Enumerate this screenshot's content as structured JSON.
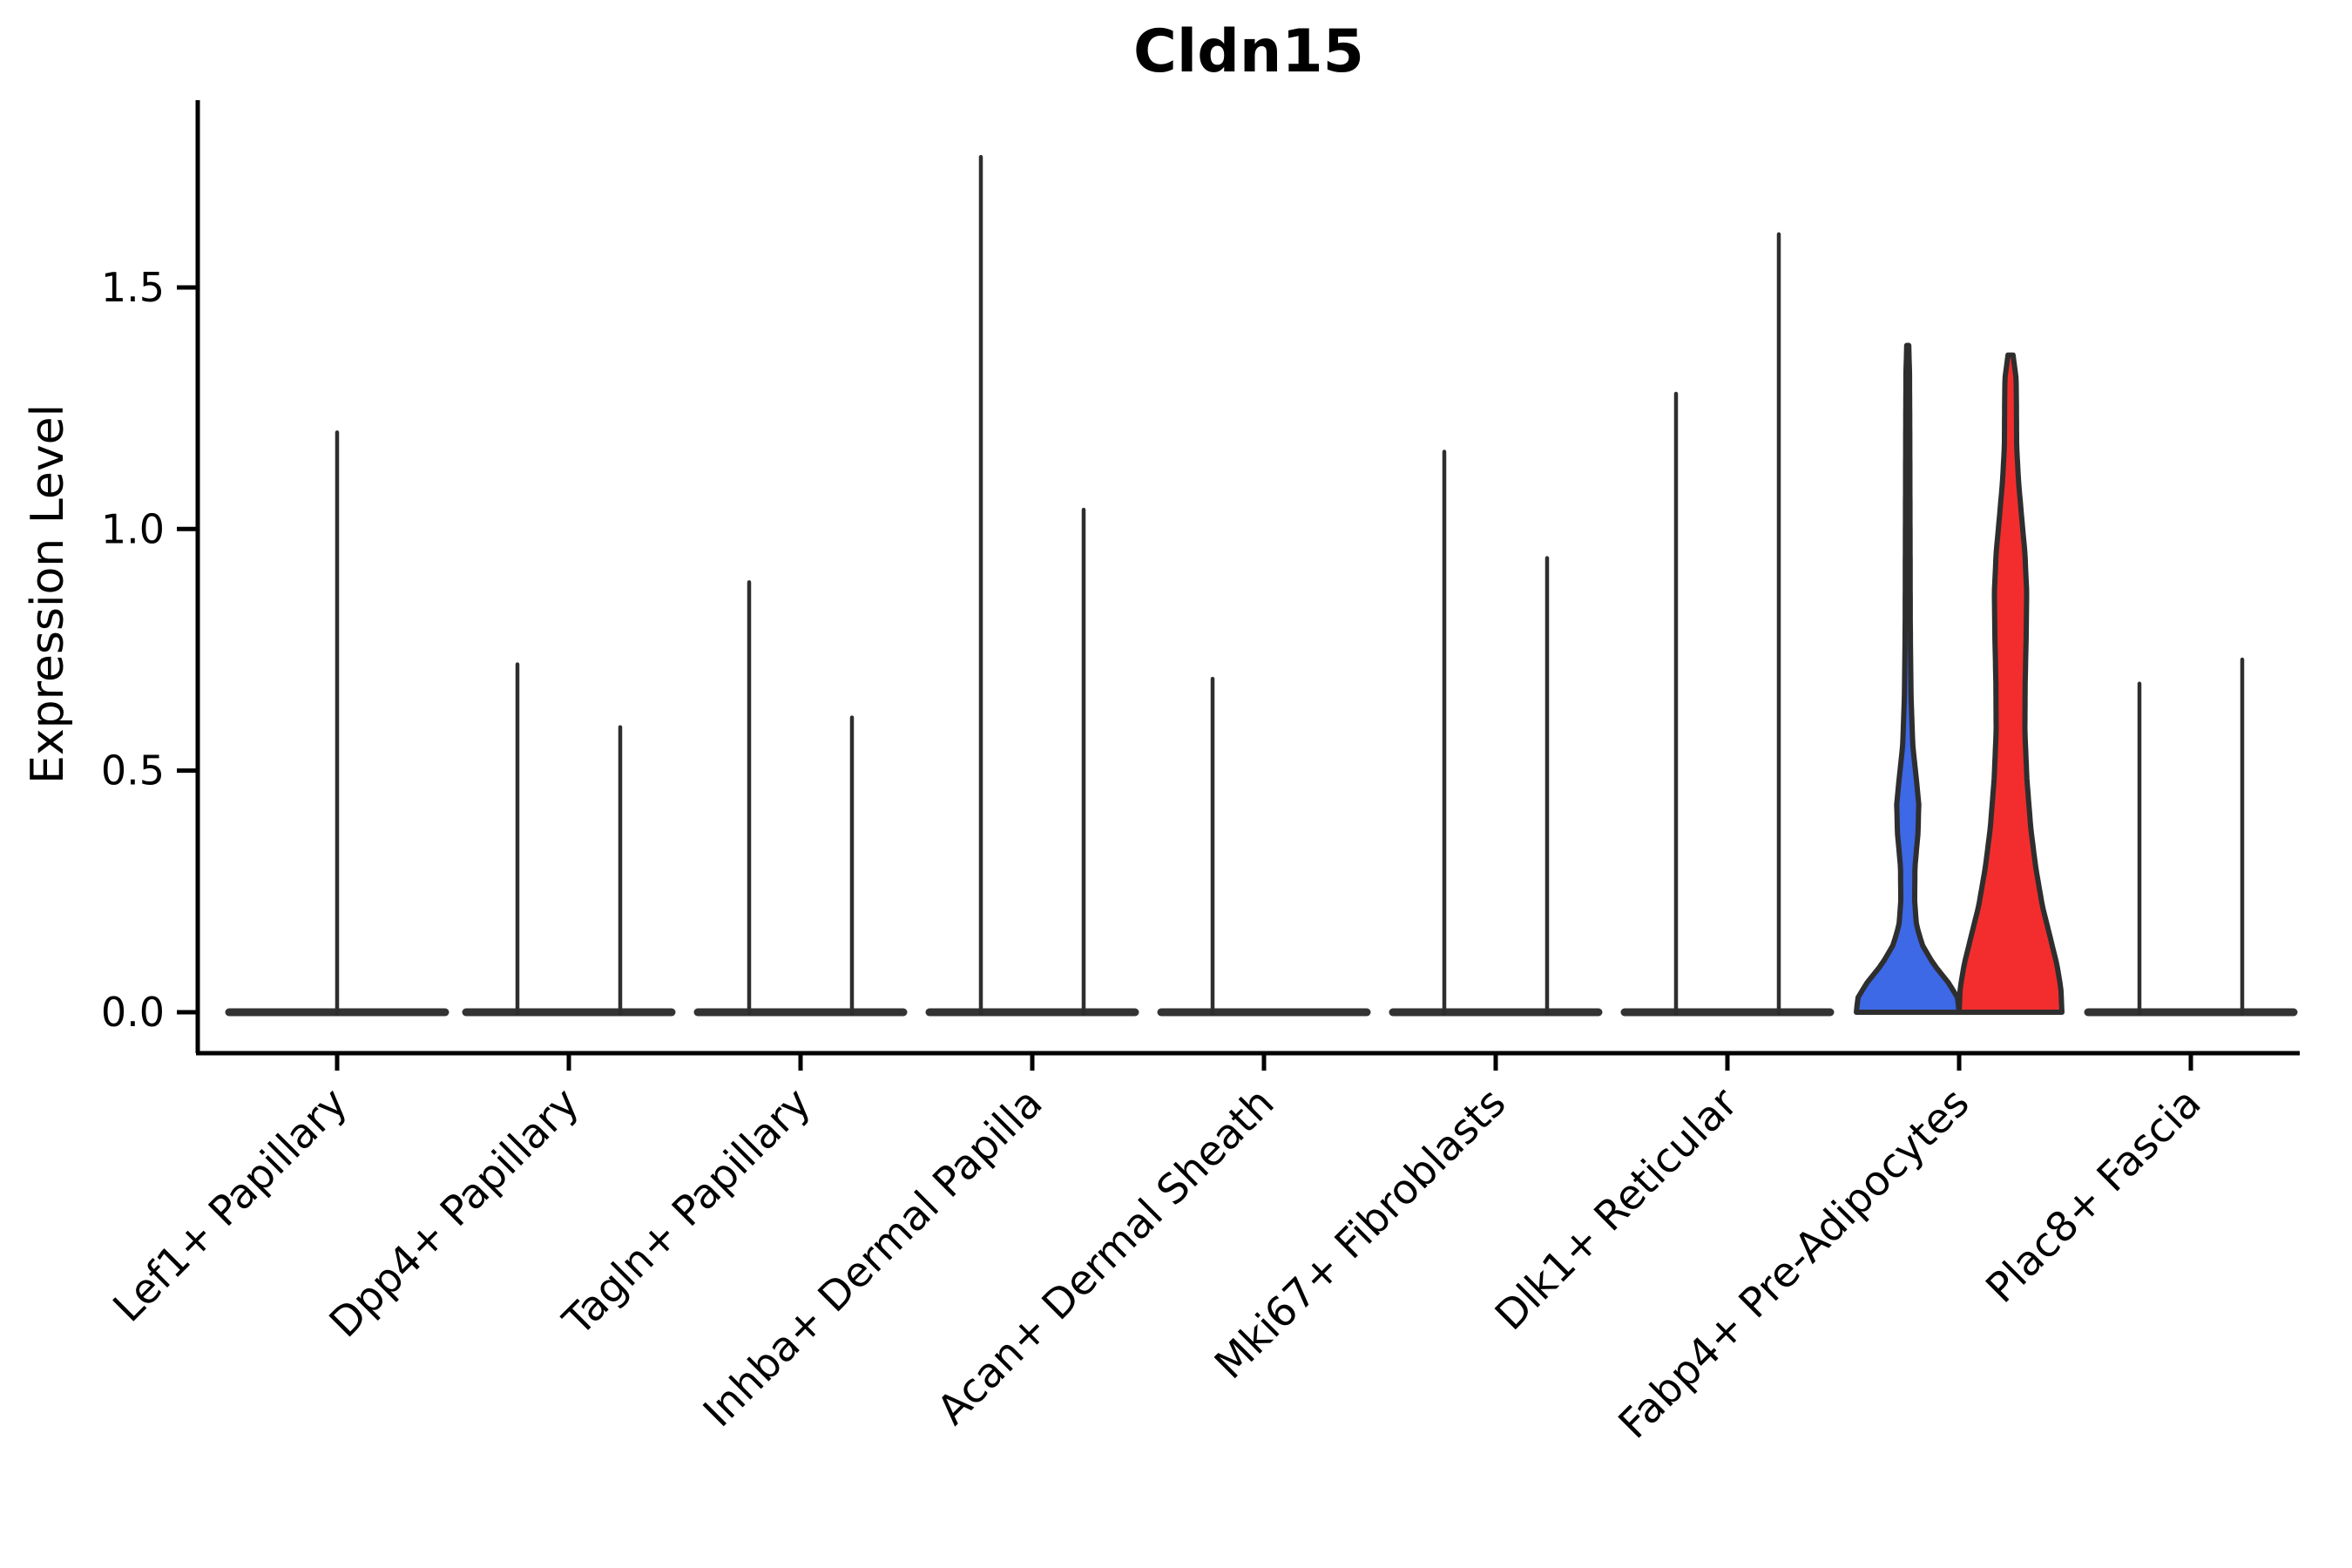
{
  "colors": {
    "axis": "#000000",
    "violin_outline": "#2E2E2E",
    "baseline": "#333333",
    "blue_fill": "#3D68E6",
    "red_fill": "#F32D2D",
    "text": "#000000"
  },
  "chart_data": {
    "type": "violin",
    "title": "Cldn15",
    "xlabel": "",
    "ylabel": "Expression Level",
    "grid": false,
    "legend": false,
    "ylim": [
      -0.07,
      1.95
    ],
    "yticks": [
      "0.0",
      "0.5",
      "1.0",
      "1.5"
    ],
    "ytick_values": [
      0.0,
      0.5,
      1.0,
      1.5
    ],
    "categories": [
      "Lef1+ Papillary",
      "Dpp4+ Papillary",
      "Tagln+ Papillary",
      "Inhba+ Dermal Papilla",
      "Acan+ Dermal Sheath",
      "Mki67+ Fibroblasts",
      "Dlk1+ Reticular",
      "Fabp4+ Pre-Adipocytes",
      "Plac8+ Fascia"
    ],
    "violins": [
      {
        "category": "Lef1+ Papillary",
        "slot": "full",
        "max_expression": 1.2,
        "fill": "none"
      },
      {
        "category": "Dpp4+ Papillary",
        "slot": "left",
        "max_expression": 0.72,
        "fill": "none"
      },
      {
        "category": "Dpp4+ Papillary",
        "slot": "right",
        "max_expression": 0.59,
        "fill": "none"
      },
      {
        "category": "Tagln+ Papillary",
        "slot": "left",
        "max_expression": 0.89,
        "fill": "none"
      },
      {
        "category": "Tagln+ Papillary",
        "slot": "right",
        "max_expression": 0.61,
        "fill": "none"
      },
      {
        "category": "Inhba+ Dermal Papilla",
        "slot": "left",
        "max_expression": 1.77,
        "fill": "none"
      },
      {
        "category": "Inhba+ Dermal Papilla",
        "slot": "right",
        "max_expression": 1.04,
        "fill": "none"
      },
      {
        "category": "Acan+ Dermal Sheath",
        "slot": "left",
        "max_expression": 0.69,
        "fill": "none"
      },
      {
        "category": "Acan+ Dermal Sheath",
        "slot": "right",
        "max_expression": 0.0,
        "fill": "none"
      },
      {
        "category": "Mki67+ Fibroblasts",
        "slot": "left",
        "max_expression": 1.16,
        "fill": "none"
      },
      {
        "category": "Mki67+ Fibroblasts",
        "slot": "right",
        "max_expression": 0.94,
        "fill": "none"
      },
      {
        "category": "Dlk1+ Reticular",
        "slot": "left",
        "max_expression": 1.28,
        "fill": "none"
      },
      {
        "category": "Dlk1+ Reticular",
        "slot": "right",
        "max_expression": 1.61,
        "fill": "none"
      },
      {
        "category": "Fabp4+ Pre-Adipocytes",
        "slot": "left",
        "max_expression": 1.38,
        "fill": "#3D68E6",
        "profile": [
          [
            0.0,
            1.0
          ],
          [
            0.03,
            0.97
          ],
          [
            0.06,
            0.8
          ],
          [
            0.1,
            0.5
          ],
          [
            0.14,
            0.28
          ],
          [
            0.18,
            0.17
          ],
          [
            0.23,
            0.135
          ],
          [
            0.3,
            0.14
          ],
          [
            0.37,
            0.2
          ],
          [
            0.43,
            0.215
          ],
          [
            0.48,
            0.17
          ],
          [
            0.55,
            0.1
          ],
          [
            0.65,
            0.065
          ],
          [
            0.8,
            0.05
          ],
          [
            1.0,
            0.045
          ],
          [
            1.2,
            0.04
          ],
          [
            1.32,
            0.035
          ],
          [
            1.38,
            0.02
          ]
        ]
      },
      {
        "category": "Fabp4+ Pre-Adipocytes",
        "slot": "right",
        "max_expression": 1.36,
        "fill": "#F32D2D",
        "profile": [
          [
            0.0,
            1.0
          ],
          [
            0.05,
            0.98
          ],
          [
            0.1,
            0.9
          ],
          [
            0.16,
            0.76
          ],
          [
            0.22,
            0.62
          ],
          [
            0.3,
            0.49
          ],
          [
            0.38,
            0.395
          ],
          [
            0.48,
            0.32
          ],
          [
            0.58,
            0.28
          ],
          [
            0.68,
            0.285
          ],
          [
            0.78,
            0.305
          ],
          [
            0.87,
            0.315
          ],
          [
            0.95,
            0.28
          ],
          [
            1.02,
            0.22
          ],
          [
            1.1,
            0.155
          ],
          [
            1.17,
            0.12
          ],
          [
            1.25,
            0.115
          ],
          [
            1.31,
            0.11
          ],
          [
            1.36,
            0.05
          ]
        ]
      },
      {
        "category": "Plac8+ Fascia",
        "slot": "left",
        "max_expression": 0.68,
        "fill": "none"
      },
      {
        "category": "Plac8+ Fascia",
        "slot": "right",
        "max_expression": 0.73,
        "fill": "none"
      }
    ]
  }
}
